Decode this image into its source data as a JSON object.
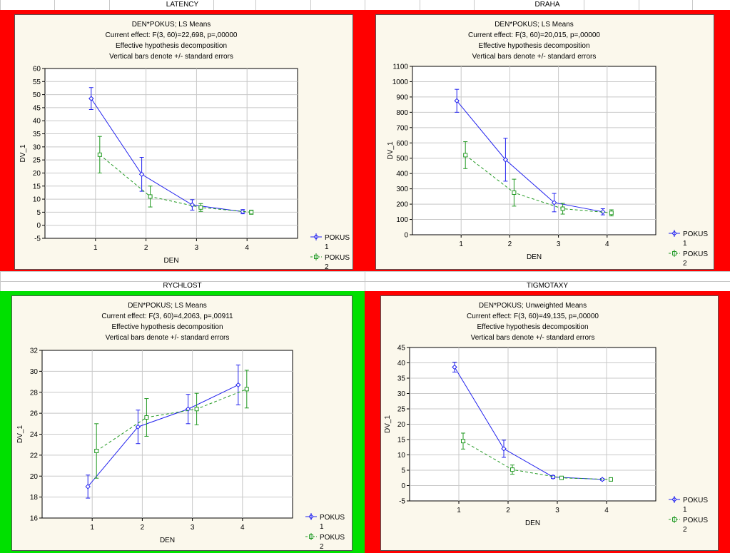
{
  "sheet": {
    "headers": [
      "LATENCY",
      "DRAHA",
      "RYCHLOST",
      "TIGMOTAXY"
    ],
    "cell_colors": [
      "#ff0000",
      "#ff0000",
      "#00e000",
      "#ff0000"
    ]
  },
  "legend": {
    "series1_line1": "POKUS",
    "series1_line2": "1",
    "series2_line1": "POKUS",
    "series2_line2": "2",
    "series1_color": "#2222ee",
    "series2_color": "#229922"
  },
  "chart_data": [
    {
      "type": "line",
      "title_lines": [
        "DEN*POKUS; LS Means",
        "Current effect: F(3, 60)=22,698, p=,00000",
        "Effective hypothesis decomposition",
        "Vertical bars denote +/- standard errors"
      ],
      "xlabel": "DEN",
      "ylabel": "DV_1",
      "x": [
        1,
        2,
        3,
        4
      ],
      "ylim": [
        -5,
        60
      ],
      "ystep": 5,
      "series": [
        {
          "name": "POKUS 1",
          "values": [
            48.5,
            19.5,
            7.8,
            5.2
          ],
          "errors": [
            4.2,
            6.5,
            2.0,
            0.8
          ]
        },
        {
          "name": "POKUS 2",
          "values": [
            27.0,
            11.0,
            6.8,
            5.0
          ],
          "errors": [
            7.0,
            4.0,
            1.5,
            0.8
          ]
        }
      ]
    },
    {
      "type": "line",
      "title_lines": [
        "DEN*POKUS; LS Means",
        "Current effect: F(3, 60)=20,015, p=,00000",
        "Effective hypothesis decomposition",
        "Vertical bars denote +/- standard errors"
      ],
      "xlabel": "DEN",
      "ylabel": "DV_1",
      "x": [
        1,
        2,
        3,
        4
      ],
      "ylim": [
        0,
        1100
      ],
      "ystep": 100,
      "series": [
        {
          "name": "POKUS 1",
          "values": [
            875,
            490,
            210,
            150
          ],
          "errors": [
            75,
            140,
            60,
            20
          ]
        },
        {
          "name": "POKUS 2",
          "values": [
            520,
            275,
            170,
            143
          ],
          "errors": [
            88,
            88,
            35,
            20
          ]
        }
      ]
    },
    {
      "type": "line",
      "title_lines": [
        "DEN*POKUS; LS Means",
        "Current effect: F(3, 60)=4,2063, p=,00911",
        "Effective hypothesis decomposition",
        "Vertical bars denote +/- standard errors"
      ],
      "xlabel": "DEN",
      "ylabel": "DV_1",
      "x": [
        1,
        2,
        3,
        4
      ],
      "ylim": [
        16,
        32
      ],
      "ystep": 2,
      "series": [
        {
          "name": "POKUS 1",
          "values": [
            19.0,
            24.7,
            26.4,
            28.7
          ],
          "errors": [
            1.1,
            1.6,
            1.4,
            1.9
          ]
        },
        {
          "name": "POKUS 2",
          "values": [
            22.4,
            25.6,
            26.4,
            28.3
          ],
          "errors": [
            2.6,
            1.8,
            1.5,
            1.8
          ]
        }
      ]
    },
    {
      "type": "line",
      "title_lines": [
        "DEN*POKUS; Unweighted Means",
        "Current effect: F(3, 60)=49,135, p=,00000",
        "Effective hypothesis decomposition",
        "Vertical bars denote +/- standard errors"
      ],
      "xlabel": "DEN",
      "ylabel": "DV_1",
      "x": [
        1,
        2,
        3,
        4
      ],
      "ylim": [
        -5,
        45
      ],
      "ystep": 5,
      "series": [
        {
          "name": "POKUS 1",
          "values": [
            38.6,
            12.0,
            2.8,
            2.0
          ],
          "errors": [
            1.6,
            2.8,
            0.5,
            0.3
          ]
        },
        {
          "name": "POKUS 2",
          "values": [
            14.5,
            5.2,
            2.5,
            2.0
          ],
          "errors": [
            2.6,
            1.5,
            0.4,
            0.3
          ]
        }
      ]
    }
  ]
}
